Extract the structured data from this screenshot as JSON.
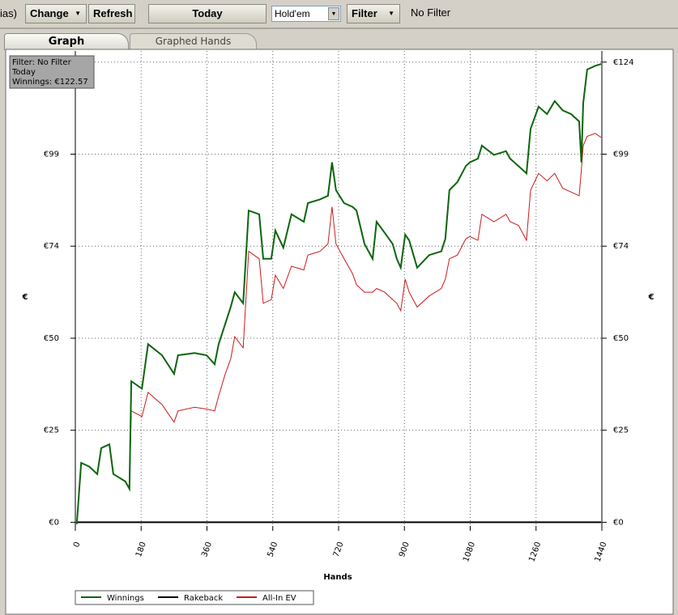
{
  "toolbar": {
    "partial_label": "ias)",
    "change": "Change",
    "refresh": "Refresh",
    "today": "Today",
    "game": "Hold'em",
    "filter": "Filter",
    "filter_status": "No Filter"
  },
  "tabs": [
    "Graph",
    "Graphed Hands"
  ],
  "info_box": [
    "Filter: No Filter",
    "Today",
    "Winnings: €122.57"
  ],
  "chart_data": {
    "type": "line",
    "x_label": "Hands",
    "y_label": "€",
    "x": [
      4,
      16,
      38,
      60,
      71,
      93,
      104,
      137,
      148,
      153,
      182,
      199,
      237,
      270,
      281,
      326,
      359,
      381,
      392,
      410,
      425,
      436,
      459,
      474,
      503,
      514,
      536,
      547,
      569,
      591,
      625,
      636,
      669,
      691,
      702,
      713,
      735,
      758,
      769,
      791,
      813,
      824,
      846,
      868,
      879,
      890,
      902,
      913,
      935,
      968,
      1001,
      1012,
      1023,
      1045,
      1068,
      1079,
      1101,
      1112,
      1145,
      1178,
      1189,
      1212,
      1234,
      1245,
      1267,
      1290,
      1311,
      1333,
      1356,
      1378,
      1384,
      1389,
      1400,
      1422,
      1438
    ],
    "series": [
      {
        "name": "Winnings",
        "color": "#0b650b",
        "values": [
          -0.5,
          16,
          15,
          13,
          20,
          21,
          13,
          11,
          9,
          38,
          36,
          48,
          45,
          40,
          45,
          45.6,
          45,
          42.6,
          48,
          53.5,
          58,
          62,
          59,
          84,
          83,
          71,
          71,
          78.6,
          74,
          83,
          81,
          86,
          87,
          88,
          97,
          89.5,
          86,
          85,
          84,
          75,
          71,
          81,
          78,
          75,
          71,
          68.6,
          77.5,
          76,
          68.6,
          72,
          73,
          76.4,
          89.5,
          91.7,
          96,
          97,
          98,
          101.5,
          99,
          100,
          98,
          96,
          94,
          106,
          112,
          110,
          113.5,
          111,
          110,
          108,
          97,
          113,
          122,
          123,
          123.5
        ]
      },
      {
        "name": "Rakeback",
        "color": "#000000",
        "values": [
          0,
          0,
          0,
          0,
          0,
          0,
          0,
          0,
          0,
          0,
          0,
          0,
          0,
          0,
          0,
          0,
          0,
          0,
          0,
          0,
          0,
          0,
          0,
          0,
          0,
          0,
          0,
          0,
          0,
          0,
          0,
          0,
          0,
          0,
          0,
          0,
          0,
          0,
          0,
          0,
          0,
          0,
          0,
          0,
          0,
          0,
          0,
          0,
          0,
          0,
          0,
          0,
          0,
          0,
          0,
          0,
          0,
          0,
          0,
          0,
          0,
          0,
          0,
          0,
          0,
          0,
          0,
          0,
          0,
          0,
          0,
          0,
          0,
          0,
          0
        ]
      },
      {
        "name": "All-In EV",
        "color": "#cc1a1a",
        "values": [
          -0.5,
          16,
          15,
          13,
          20,
          21,
          13,
          11,
          9,
          30,
          28.5,
          35,
          31.7,
          27,
          30,
          31,
          30.5,
          30,
          34,
          40,
          44,
          50,
          47,
          73,
          71,
          59,
          60,
          66.6,
          63,
          69,
          68,
          72,
          73,
          75,
          85,
          75,
          71,
          67,
          64,
          62,
          62,
          63,
          62,
          60,
          59,
          57,
          65.5,
          62,
          58,
          61,
          63,
          65.5,
          71,
          72,
          76.4,
          77,
          76,
          83,
          81,
          83,
          81,
          80,
          76,
          89.5,
          94,
          92,
          94,
          90,
          89,
          88,
          95,
          101.5,
          104,
          104.8,
          103.7
        ]
      }
    ],
    "xlim": [
      0,
      1440
    ],
    "xticks": [
      0,
      180,
      360,
      540,
      720,
      900,
      1080,
      1260,
      1440
    ],
    "ylim": [
      -1,
      127
    ],
    "yticks": [
      {
        "value": 0,
        "label": "€0"
      },
      {
        "value": 24.8,
        "label": "€25"
      },
      {
        "value": 49.6,
        "label": "€50"
      },
      {
        "value": 74.4,
        "label": "€74"
      },
      {
        "value": 99.2,
        "label": "€99"
      },
      {
        "value": 124,
        "label": "€124"
      }
    ],
    "grid": true,
    "legend": "bottom-left"
  }
}
